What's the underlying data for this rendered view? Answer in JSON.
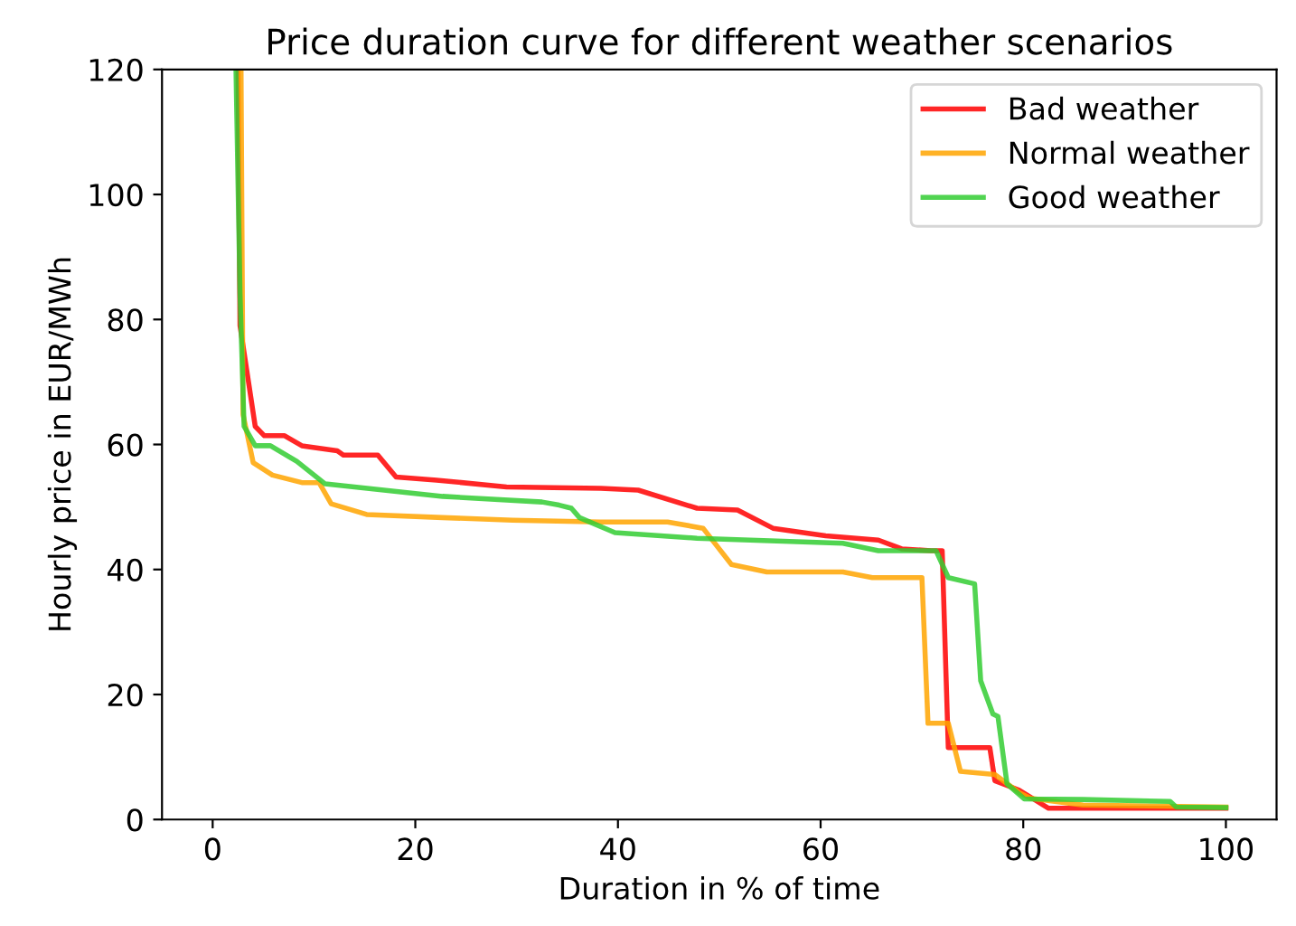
{
  "chart_data": {
    "type": "line",
    "title": "Price duration curve for different weather scenarios",
    "xlabel": "Duration in % of time",
    "ylabel": "Hourly price in EUR/MWh",
    "xlim": [
      -5,
      105
    ],
    "ylim": [
      0,
      120
    ],
    "xticks": [
      0,
      20,
      40,
      60,
      80,
      100
    ],
    "yticks": [
      0,
      20,
      40,
      60,
      80,
      100,
      120
    ],
    "grid": false,
    "legend": "top right",
    "series": [
      {
        "name": "Bad weather",
        "color": "#ff0000",
        "x": [
          2.5,
          2.7,
          4.2,
          5.1,
          7.1,
          8.8,
          12.3,
          12.9,
          16.3,
          18.1,
          22.1,
          29.0,
          38.3,
          42.0,
          47.8,
          51.8,
          55.3,
          60.5,
          65.7,
          68.0,
          70.9,
          72.0,
          72.6,
          76.7,
          77.2,
          79.6,
          82.5,
          100
        ],
        "values": [
          120,
          79,
          62.9,
          61.4,
          61.4,
          59.8,
          59,
          58.3,
          58.3,
          54.8,
          54.3,
          53.2,
          53.0,
          52.7,
          49.8,
          49.5,
          46.6,
          45.4,
          44.7,
          43.3,
          43.0,
          43.0,
          11.5,
          11.5,
          6.2,
          4.7,
          1.8,
          1.8
        ]
      },
      {
        "name": "Normal weather",
        "color": "#ffa500",
        "x": [
          2.8,
          3.0,
          4.0,
          5.9,
          8.8,
          10.5,
          11.7,
          15.2,
          22.7,
          29.6,
          38.3,
          44.9,
          48.4,
          51.2,
          54.7,
          62.2,
          65.1,
          69.4,
          70.0,
          70.6,
          72.6,
          73.8,
          77.2,
          79.6,
          80.7,
          85.9,
          100
        ],
        "values": [
          120,
          64.8,
          57.1,
          55.1,
          53.9,
          53.9,
          50.5,
          48.8,
          48.3,
          47.9,
          47.6,
          47.6,
          46.6,
          40.8,
          39.6,
          39.6,
          38.7,
          38.7,
          38.7,
          15.4,
          15.4,
          7.7,
          7.2,
          4.3,
          3.4,
          2.3,
          2.0
        ]
      },
      {
        "name": "Good weather",
        "color": "#32cd32",
        "x": [
          2.3,
          2.7,
          3.1,
          4.2,
          5.7,
          8.3,
          11.1,
          14.0,
          22.7,
          32.5,
          34.2,
          35.4,
          36.2,
          39.7,
          47.8,
          62.2,
          65.7,
          70.9,
          71.4,
          72.6,
          75.2,
          75.8,
          77.0,
          77.5,
          78.4,
          80.1,
          85.9,
          94.5,
          95.1,
          100
        ],
        "values": [
          120,
          84.2,
          62.9,
          59.8,
          59.8,
          57.3,
          53.7,
          53.2,
          51.7,
          50.8,
          50.3,
          49.8,
          48.3,
          45.9,
          45.0,
          44.2,
          43.0,
          43.0,
          43.0,
          38.7,
          37.7,
          22.2,
          16.9,
          16.5,
          5.7,
          3.3,
          3.2,
          2.9,
          2.0,
          1.9
        ]
      }
    ]
  }
}
